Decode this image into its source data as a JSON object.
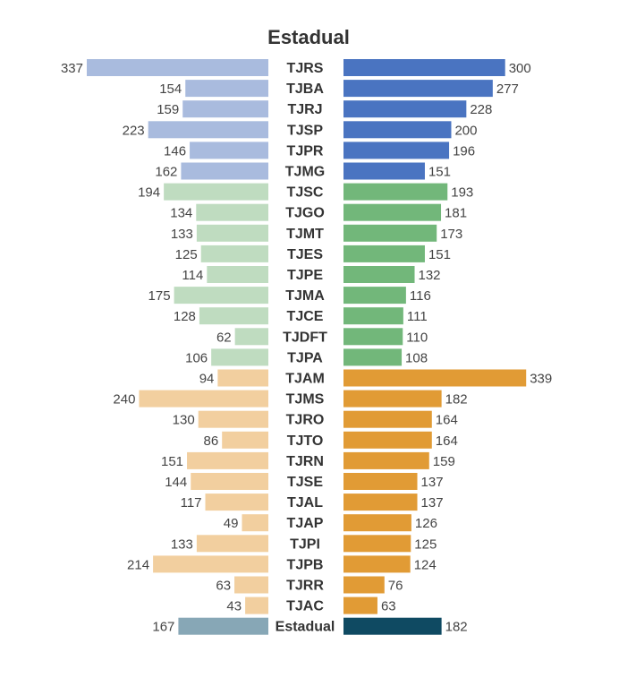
{
  "chart_data": {
    "type": "bar",
    "title": "Estadual",
    "categories": [
      "TJRS",
      "TJBA",
      "TJRJ",
      "TJSP",
      "TJPR",
      "TJMG",
      "TJSC",
      "TJGO",
      "TJMT",
      "TJES",
      "TJPE",
      "TJMA",
      "TJCE",
      "TJDFT",
      "TJPA",
      "TJAM",
      "TJMS",
      "TJRO",
      "TJTO",
      "TJRN",
      "TJSE",
      "TJAL",
      "TJAP",
      "TJPI",
      "TJPB",
      "TJRR",
      "TJAC",
      "Estadual"
    ],
    "series": [
      {
        "values": [
          337,
          154,
          159,
          223,
          146,
          162,
          194,
          134,
          133,
          125,
          114,
          175,
          128,
          62,
          106,
          94,
          240,
          130,
          86,
          151,
          144,
          117,
          49,
          133,
          214,
          63,
          43,
          167
        ]
      },
      {
        "values": [
          300,
          277,
          228,
          200,
          196,
          151,
          193,
          181,
          173,
          151,
          132,
          116,
          111,
          110,
          108,
          339,
          182,
          164,
          164,
          159,
          137,
          137,
          126,
          125,
          124,
          76,
          63,
          182
        ]
      }
    ],
    "groups": [
      {
        "count": 6,
        "left_color": "#a9bbde",
        "right_color": "#4a74c1"
      },
      {
        "count": 9,
        "left_color": "#bfdcc0",
        "right_color": "#72b77a"
      },
      {
        "count": 12,
        "left_color": "#f2cf9f",
        "right_color": "#e19b35"
      },
      {
        "count": 1,
        "left_color": "#87a7b6",
        "right_color": "#0f4a62"
      }
    ]
  }
}
